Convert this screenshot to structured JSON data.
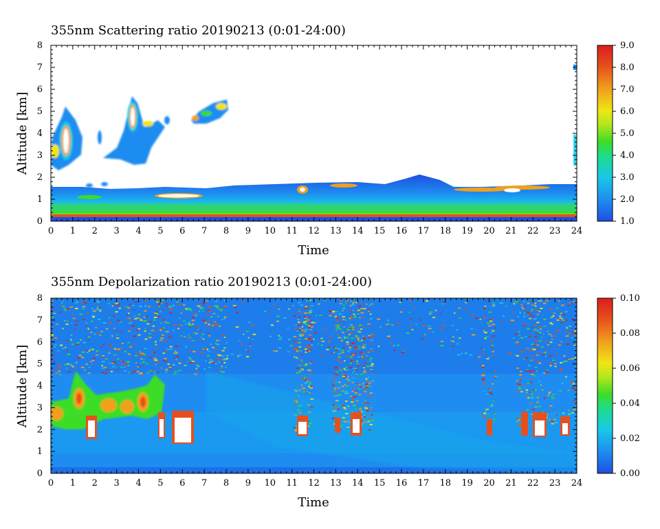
{
  "chart_data": [
    {
      "type": "heatmap",
      "title": "355nm Scattering ratio  20190213 (0:01-24:00)",
      "xlabel": "Time",
      "ylabel": "Altitude [km]",
      "x_ticks": [
        "0",
        "1",
        "2",
        "3",
        "4",
        "5",
        "6",
        "7",
        "8",
        "9",
        "10",
        "11",
        "12",
        "13",
        "14",
        "15",
        "16",
        "17",
        "18",
        "19",
        "20",
        "21",
        "22",
        "23",
        "24"
      ],
      "y_ticks": [
        "0",
        "1",
        "2",
        "3",
        "4",
        "5",
        "6",
        "7",
        "8"
      ],
      "xlim": [
        0,
        24
      ],
      "ylim": [
        0,
        8
      ],
      "colorbar": {
        "ticks": [
          "1.0",
          "2.0",
          "3.0",
          "4.0",
          "5.0",
          "6.0",
          "7.0",
          "8.0",
          "9.0"
        ],
        "range": [
          1.0,
          9.0
        ],
        "colors": [
          "#1f4fe0",
          "#1e8cf0",
          "#19c8e8",
          "#1edc8c",
          "#3cdc28",
          "#b4e61e",
          "#f0e614",
          "#f0a01e",
          "#e6501e",
          "#dc1e1e"
        ]
      },
      "features": [
        {
          "name": "boundary layer",
          "t": [
            0,
            24
          ],
          "alt_km": [
            0.2,
            1.6
          ]
        },
        {
          "name": "cloud",
          "t": [
            0.0,
            1.5
          ],
          "alt_km": [
            2.0,
            5.2
          ]
        },
        {
          "name": "cloud",
          "t": [
            2.2,
            5.0
          ],
          "alt_km": [
            2.5,
            5.8
          ]
        },
        {
          "name": "cloud",
          "t": [
            6.5,
            8.0
          ],
          "alt_km": [
            4.5,
            5.7
          ]
        },
        {
          "name": "aerosol layer",
          "t": [
            10.5,
            24
          ],
          "alt_km": [
            1.0,
            2.2
          ]
        }
      ]
    },
    {
      "type": "heatmap",
      "title": "355nm Depolarization ratio  20190213 (0:01-24:00)",
      "xlabel": "Time",
      "ylabel": "Altitude [km]",
      "x_ticks": [
        "0",
        "1",
        "2",
        "3",
        "4",
        "5",
        "6",
        "7",
        "8",
        "9",
        "10",
        "11",
        "12",
        "13",
        "14",
        "15",
        "16",
        "17",
        "18",
        "19",
        "20",
        "21",
        "22",
        "23",
        "24"
      ],
      "y_ticks": [
        "0",
        "1",
        "2",
        "3",
        "4",
        "5",
        "6",
        "7",
        "8"
      ],
      "xlim": [
        0,
        24
      ],
      "ylim": [
        0,
        8
      ],
      "colorbar": {
        "ticks": [
          "0.00",
          "0.02",
          "0.04",
          "0.06",
          "0.08",
          "0.10"
        ],
        "range": [
          0.0,
          0.1
        ],
        "colors": [
          "#1f4fe0",
          "#1e8cf0",
          "#19c8e8",
          "#1edc8c",
          "#3cdc28",
          "#b4e61e",
          "#f0e614",
          "#f0a01e",
          "#e6501e",
          "#dc1e1e"
        ]
      },
      "features": [
        {
          "name": "depolarizing cloud",
          "t": [
            0.5,
            5.0
          ],
          "alt_km": [
            2.5,
            4.0
          ]
        },
        {
          "name": "noisy upper layer",
          "t": [
            0,
            8
          ],
          "alt_km": [
            5.0,
            8.0
          ]
        },
        {
          "name": "high depolarization",
          "t": [
            11,
            14.5
          ],
          "alt_km": [
            1.5,
            8.0
          ]
        },
        {
          "name": "high depolarization",
          "t": [
            20,
            24
          ],
          "alt_km": [
            1.5,
            8.0
          ]
        }
      ]
    }
  ]
}
